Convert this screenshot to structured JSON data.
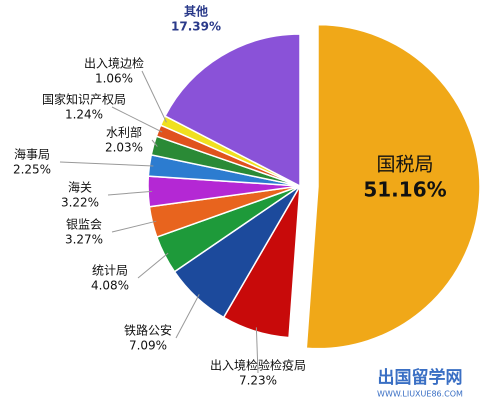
{
  "chart_data": {
    "type": "pie",
    "categories": [
      "国税局",
      "出入境检验检疫局",
      "铁路公安",
      "统计局",
      "银监会",
      "海关",
      "海事局",
      "水利部",
      "国家知识产权局",
      "出入境边检",
      "其他"
    ],
    "values": [
      51.16,
      7.23,
      7.09,
      4.08,
      3.27,
      3.22,
      2.25,
      2.03,
      1.24,
      1.06,
      17.39
    ],
    "value_labels": [
      "51.16%",
      "7.23%",
      "7.09%",
      "4.08%",
      "3.27%",
      "3.22%",
      "2.25%",
      "2.03%",
      "1.24%",
      "1.06%",
      "17.39%"
    ],
    "colors": [
      "#F0A818",
      "#C80A0A",
      "#1C4A9C",
      "#1E9A3A",
      "#E8641E",
      "#B428D4",
      "#2C7CD0",
      "#2A8A36",
      "#E0521E",
      "#F0E020",
      "#8A52D8"
    ],
    "watermark": {
      "title": "出国留学网",
      "url": "WWW.LIUXUE86.COM"
    }
  }
}
